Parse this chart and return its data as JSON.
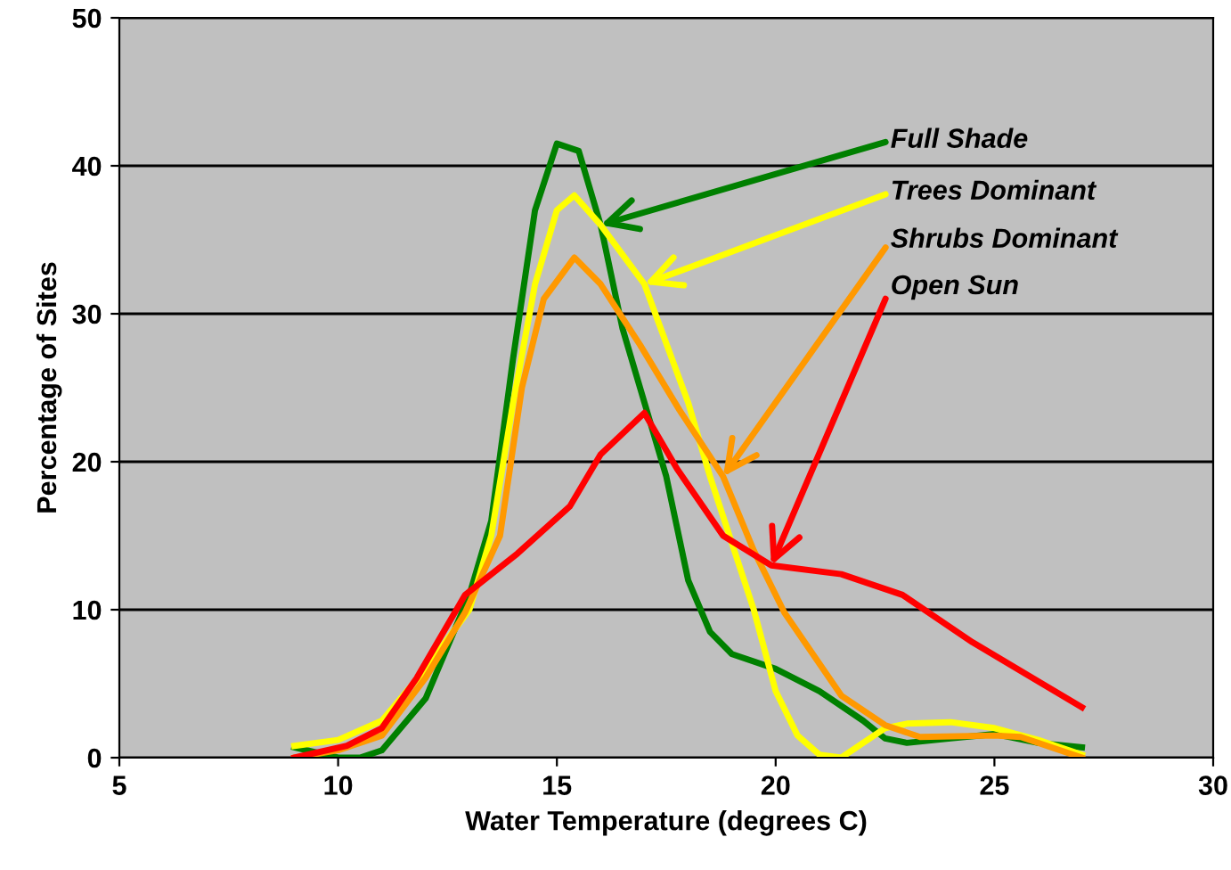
{
  "chart_data": {
    "type": "line",
    "xlabel": "Water Temperature (degrees C)",
    "ylabel": "Percentage of Sites",
    "xlim": [
      5,
      30
    ],
    "xticks": [
      5,
      10,
      15,
      20,
      25,
      30
    ],
    "ylim": [
      0,
      50
    ],
    "yticks": [
      0,
      10,
      20,
      30,
      40,
      50
    ],
    "grid": "y",
    "legend": false,
    "marker": "none",
    "line_style": "solid",
    "series": [
      {
        "name": "Full Shade",
        "color": "#008000",
        "x": [
          9,
          10,
          10.5,
          11,
          12,
          13,
          13.5,
          14,
          14.5,
          15,
          15.5,
          16,
          16.5,
          17,
          17.5,
          18,
          18.5,
          19,
          20,
          21,
          22,
          22.5,
          23,
          24,
          25,
          26,
          27
        ],
        "values": [
          0.7,
          0,
          0,
          0.5,
          4,
          11,
          16,
          27,
          37,
          41.5,
          41,
          36,
          29,
          24,
          19,
          12,
          8.5,
          7,
          6,
          4.5,
          2.5,
          1.3,
          1,
          1.3,
          1.6,
          1,
          0.7
        ]
      },
      {
        "name": "Trees Dominant",
        "color": "#ffff00",
        "x": [
          9,
          10,
          11,
          12,
          13,
          13.5,
          14,
          14.5,
          15,
          15.4,
          16,
          16.5,
          17,
          17.5,
          18,
          18.5,
          19,
          19.5,
          20,
          20.5,
          21,
          21.5,
          22,
          22.5,
          23,
          24,
          25,
          26,
          27
        ],
        "values": [
          0.8,
          1.2,
          2.5,
          6,
          10,
          15,
          24,
          32,
          37,
          38,
          36,
          34,
          32,
          28,
          24,
          19,
          14.5,
          10,
          4.5,
          1.5,
          0.2,
          0,
          1,
          2,
          2.3,
          2.4,
          2,
          1.2,
          0.2
        ]
      },
      {
        "name": "Shrubs Dominant",
        "color": "#ff9900",
        "x": [
          9,
          10,
          11,
          12,
          12.9,
          13.7,
          14.2,
          14.7,
          15.4,
          16,
          16.9,
          17.8,
          18.8,
          19.5,
          20.2,
          21.5,
          22.5,
          23.3,
          25,
          25.6,
          27
        ],
        "values": [
          0,
          0.5,
          1.5,
          5.4,
          9.8,
          15,
          25,
          31,
          33.8,
          32,
          27.9,
          23.5,
          19,
          14,
          9.8,
          4.2,
          2.2,
          1.4,
          1.5,
          1.4,
          0
        ]
      },
      {
        "name": "Open Sun",
        "color": "#ff0000",
        "x": [
          9,
          10.2,
          11,
          11.8,
          12.9,
          14.1,
          15.3,
          16,
          17,
          17.75,
          18.8,
          19.9,
          21.5,
          22.9,
          24.5,
          27
        ],
        "values": [
          0,
          0.8,
          2,
          5.4,
          11,
          13.8,
          17,
          20.5,
          23.3,
          19.5,
          15,
          13,
          12.4,
          11,
          7.8,
          3.4
        ]
      }
    ]
  }
}
